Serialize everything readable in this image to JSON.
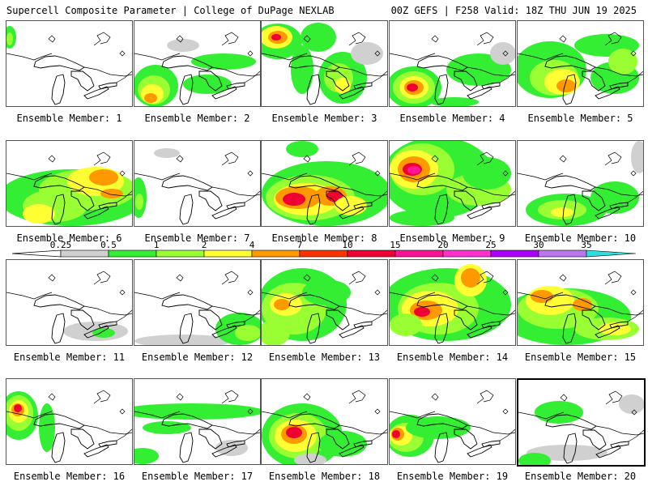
{
  "header": {
    "title_left": "Supercell Composite Parameter | College of DuPage NEXLAB",
    "title_right": "00Z GEFS | F258 Valid: 18Z THU JUN 19 2025"
  },
  "caption_prefix": "Ensemble Member: ",
  "selected_member": 20,
  "colorbar": {
    "labels": [
      "0.25",
      "0.5",
      "1",
      "2",
      "4",
      "7",
      "10",
      "15",
      "20",
      "25",
      "30",
      "35"
    ],
    "colors": [
      "#d0d0d0",
      "#33ee33",
      "#99ff33",
      "#ffff33",
      "#ff9900",
      "#ff3300",
      "#ee0033",
      "#ff1493",
      "#ff33cc",
      "#aa00ff",
      "#bb77ee",
      "#33dddd"
    ]
  },
  "members": [
    {
      "n": 1
    },
    {
      "n": 2
    },
    {
      "n": 3
    },
    {
      "n": 4
    },
    {
      "n": 5
    },
    {
      "n": 6
    },
    {
      "n": 7
    },
    {
      "n": 8
    },
    {
      "n": 9
    },
    {
      "n": 10
    },
    {
      "n": 11
    },
    {
      "n": 12
    },
    {
      "n": 13
    },
    {
      "n": 14
    },
    {
      "n": 15
    },
    {
      "n": 16
    },
    {
      "n": 17
    },
    {
      "n": 18
    },
    {
      "n": 19
    },
    {
      "n": 20
    }
  ]
}
